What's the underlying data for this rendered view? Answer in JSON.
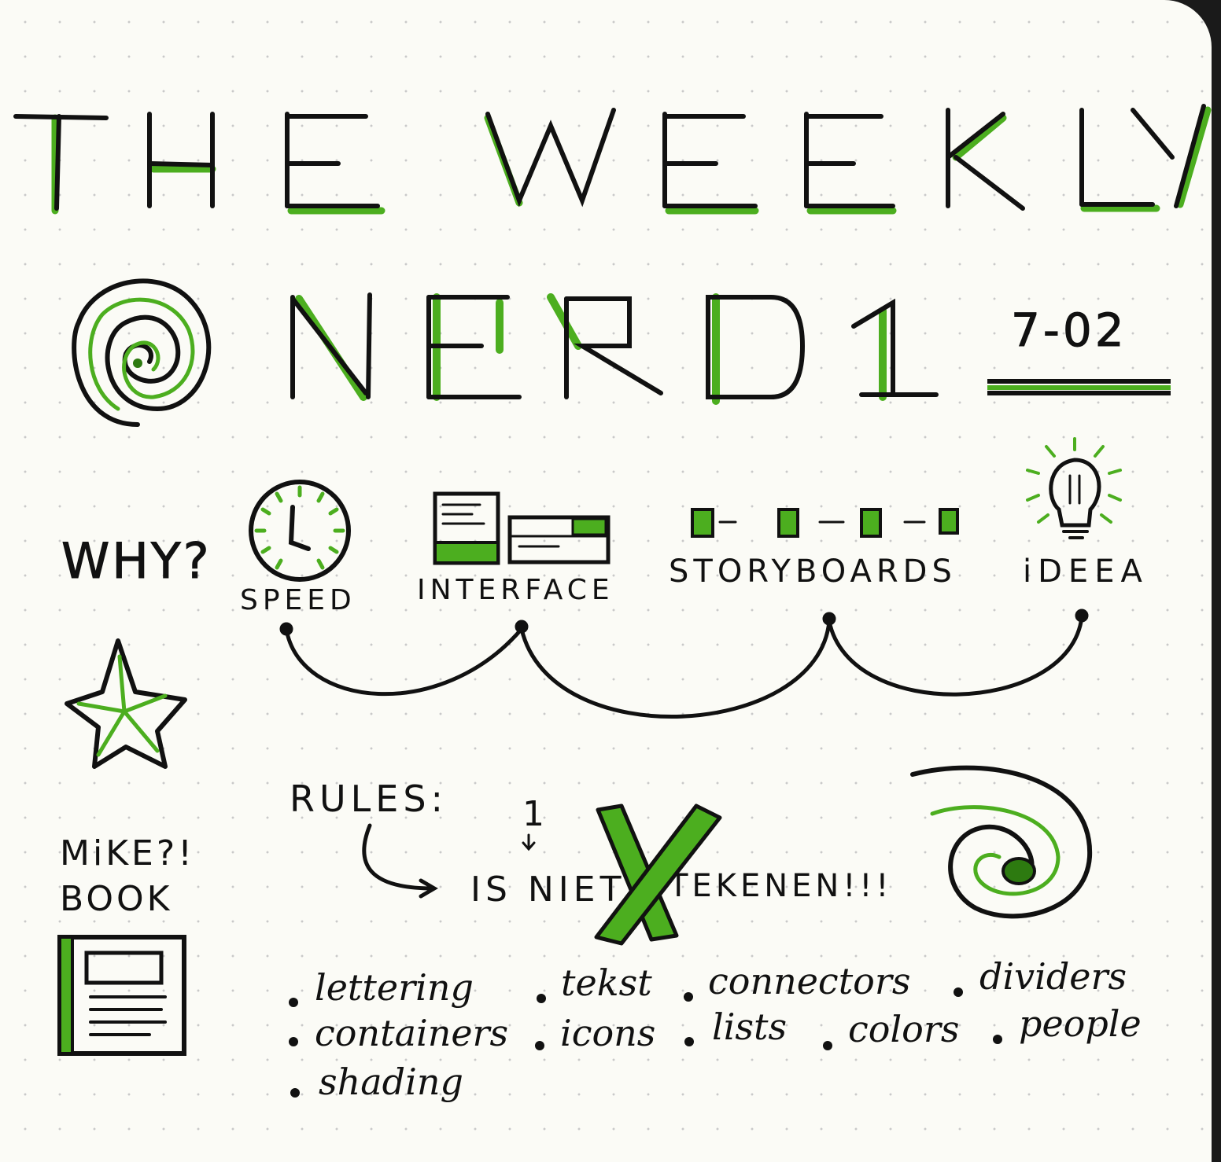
{
  "title": {
    "line1_words": [
      "THE",
      "WEEKLY"
    ],
    "line2_word": "NERD",
    "number": "1",
    "date": "7-02"
  },
  "why": {
    "label": "WHY?",
    "items": [
      {
        "label": "SPEED",
        "icon": "clock-icon"
      },
      {
        "label": "INTERFACE",
        "icon": "interface-wireframe-icon"
      },
      {
        "label": "STORYBOARDS",
        "icon": "storyboard-frames-icon"
      },
      {
        "label": "iDEEA",
        "icon": "lightbulb-icon"
      }
    ]
  },
  "side": {
    "line1": "MiKE?!",
    "line2": "BOOK",
    "book_icon": "book-icon",
    "star_icon": "star-icon"
  },
  "rules": {
    "label": "RULES:",
    "marker": "1",
    "rule_text_before": "IS NIET",
    "rule_text_after": "TEKENEN!!!",
    "cross_icon": "cross-icon"
  },
  "topics": [
    "lettering",
    "tekst",
    "connectors",
    "dividers",
    "containers",
    "icons",
    "lists",
    "colors",
    "people",
    "shading"
  ],
  "colors": {
    "ink": "#111111",
    "accent_green": "#4cae1f",
    "paper": "#fbfbf6"
  }
}
